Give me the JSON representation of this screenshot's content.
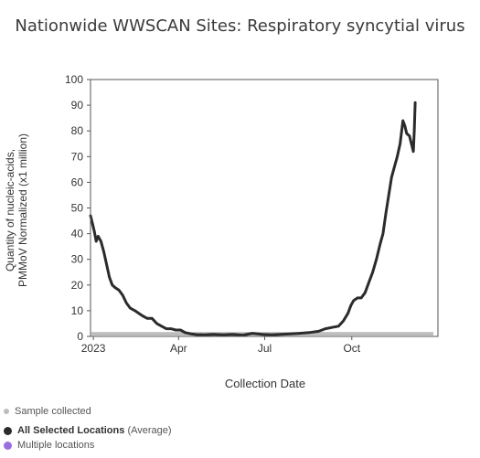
{
  "chart_data": {
    "type": "line",
    "title": "Nationwide WWSCAN Sites: Respiratory syncytial virus",
    "xlabel": "Collection Date",
    "ylabel": "Quantity of nucleic-acids, PMMoV Normalized (x1 million)",
    "ylabel_lines": [
      "Quantity of nucleic-acids,",
      "PMMoV Normalized (x1 million)"
    ],
    "ylim": [
      0,
      100
    ],
    "y_ticks": [
      0,
      10,
      20,
      30,
      40,
      50,
      60,
      70,
      80,
      90,
      100
    ],
    "x_range": [
      "2022-12-29",
      "2023-12-31"
    ],
    "x_ticks": [
      {
        "date": "2023-01-01",
        "label": "2023"
      },
      {
        "date": "2023-04-01",
        "label": "Apr"
      },
      {
        "date": "2023-07-01",
        "label": "Jul"
      },
      {
        "date": "2023-10-01",
        "label": "Oct"
      }
    ],
    "grid": false,
    "series": [
      {
        "name": "All Selected Locations",
        "color": "#2b2b2b",
        "points": [
          [
            "2022-12-29",
            47
          ],
          [
            "2022-12-31",
            44
          ],
          [
            "2023-01-02",
            41
          ],
          [
            "2023-01-04",
            37
          ],
          [
            "2023-01-06",
            39
          ],
          [
            "2023-01-09",
            37
          ],
          [
            "2023-01-12",
            33
          ],
          [
            "2023-01-15",
            28
          ],
          [
            "2023-01-18",
            23
          ],
          [
            "2023-01-21",
            20
          ],
          [
            "2023-01-24",
            19
          ],
          [
            "2023-01-28",
            18
          ],
          [
            "2023-02-01",
            16
          ],
          [
            "2023-02-05",
            13
          ],
          [
            "2023-02-09",
            11
          ],
          [
            "2023-02-14",
            10
          ],
          [
            "2023-02-18",
            9
          ],
          [
            "2023-02-22",
            8
          ],
          [
            "2023-02-27",
            7
          ],
          [
            "2023-03-04",
            7
          ],
          [
            "2023-03-09",
            5
          ],
          [
            "2023-03-14",
            4
          ],
          [
            "2023-03-19",
            3
          ],
          [
            "2023-03-24",
            3
          ],
          [
            "2023-03-29",
            2.5
          ],
          [
            "2023-04-03",
            2.5
          ],
          [
            "2023-04-08",
            1.5
          ],
          [
            "2023-04-14",
            1
          ],
          [
            "2023-04-20",
            0.7
          ],
          [
            "2023-04-28",
            0.6
          ],
          [
            "2023-05-08",
            0.8
          ],
          [
            "2023-05-18",
            0.6
          ],
          [
            "2023-05-28",
            0.8
          ],
          [
            "2023-06-08",
            0.5
          ],
          [
            "2023-06-18",
            1.2
          ],
          [
            "2023-06-28",
            0.8
          ],
          [
            "2023-07-08",
            0.6
          ],
          [
            "2023-07-18",
            0.8
          ],
          [
            "2023-07-28",
            1
          ],
          [
            "2023-08-07",
            1.2
          ],
          [
            "2023-08-17",
            1.5
          ],
          [
            "2023-08-27",
            2
          ],
          [
            "2023-09-03",
            3
          ],
          [
            "2023-09-10",
            3.5
          ],
          [
            "2023-09-17",
            4
          ],
          [
            "2023-09-22",
            6
          ],
          [
            "2023-09-27",
            9
          ],
          [
            "2023-09-30",
            12
          ],
          [
            "2023-10-03",
            14
          ],
          [
            "2023-10-07",
            15
          ],
          [
            "2023-10-11",
            15
          ],
          [
            "2023-10-15",
            17
          ],
          [
            "2023-10-19",
            21
          ],
          [
            "2023-10-23",
            25
          ],
          [
            "2023-10-27",
            30
          ],
          [
            "2023-10-31",
            36
          ],
          [
            "2023-11-03",
            40
          ],
          [
            "2023-11-06",
            48
          ],
          [
            "2023-11-09",
            55
          ],
          [
            "2023-11-12",
            62
          ],
          [
            "2023-11-15",
            66
          ],
          [
            "2023-11-18",
            70
          ],
          [
            "2023-11-21",
            75
          ],
          [
            "2023-11-24",
            84
          ],
          [
            "2023-11-26",
            82
          ],
          [
            "2023-11-28",
            79
          ],
          [
            "2023-12-01",
            78
          ],
          [
            "2023-12-03",
            75
          ],
          [
            "2023-12-05",
            72
          ],
          [
            "2023-12-06",
            80
          ],
          [
            "2023-12-07",
            91
          ]
        ]
      }
    ],
    "sample_collected_band": {
      "color": "#bdbdbd",
      "y": 1
    }
  },
  "legend": {
    "sample_collected": {
      "label": "Sample collected",
      "color": "#bdbdbd"
    },
    "all_locations": {
      "label": "All Selected Locations",
      "suffix": "(Average)",
      "color": "#2b2b2b"
    },
    "multiple_locations": {
      "label": "Multiple locations",
      "color": "#9b6ee0"
    }
  }
}
